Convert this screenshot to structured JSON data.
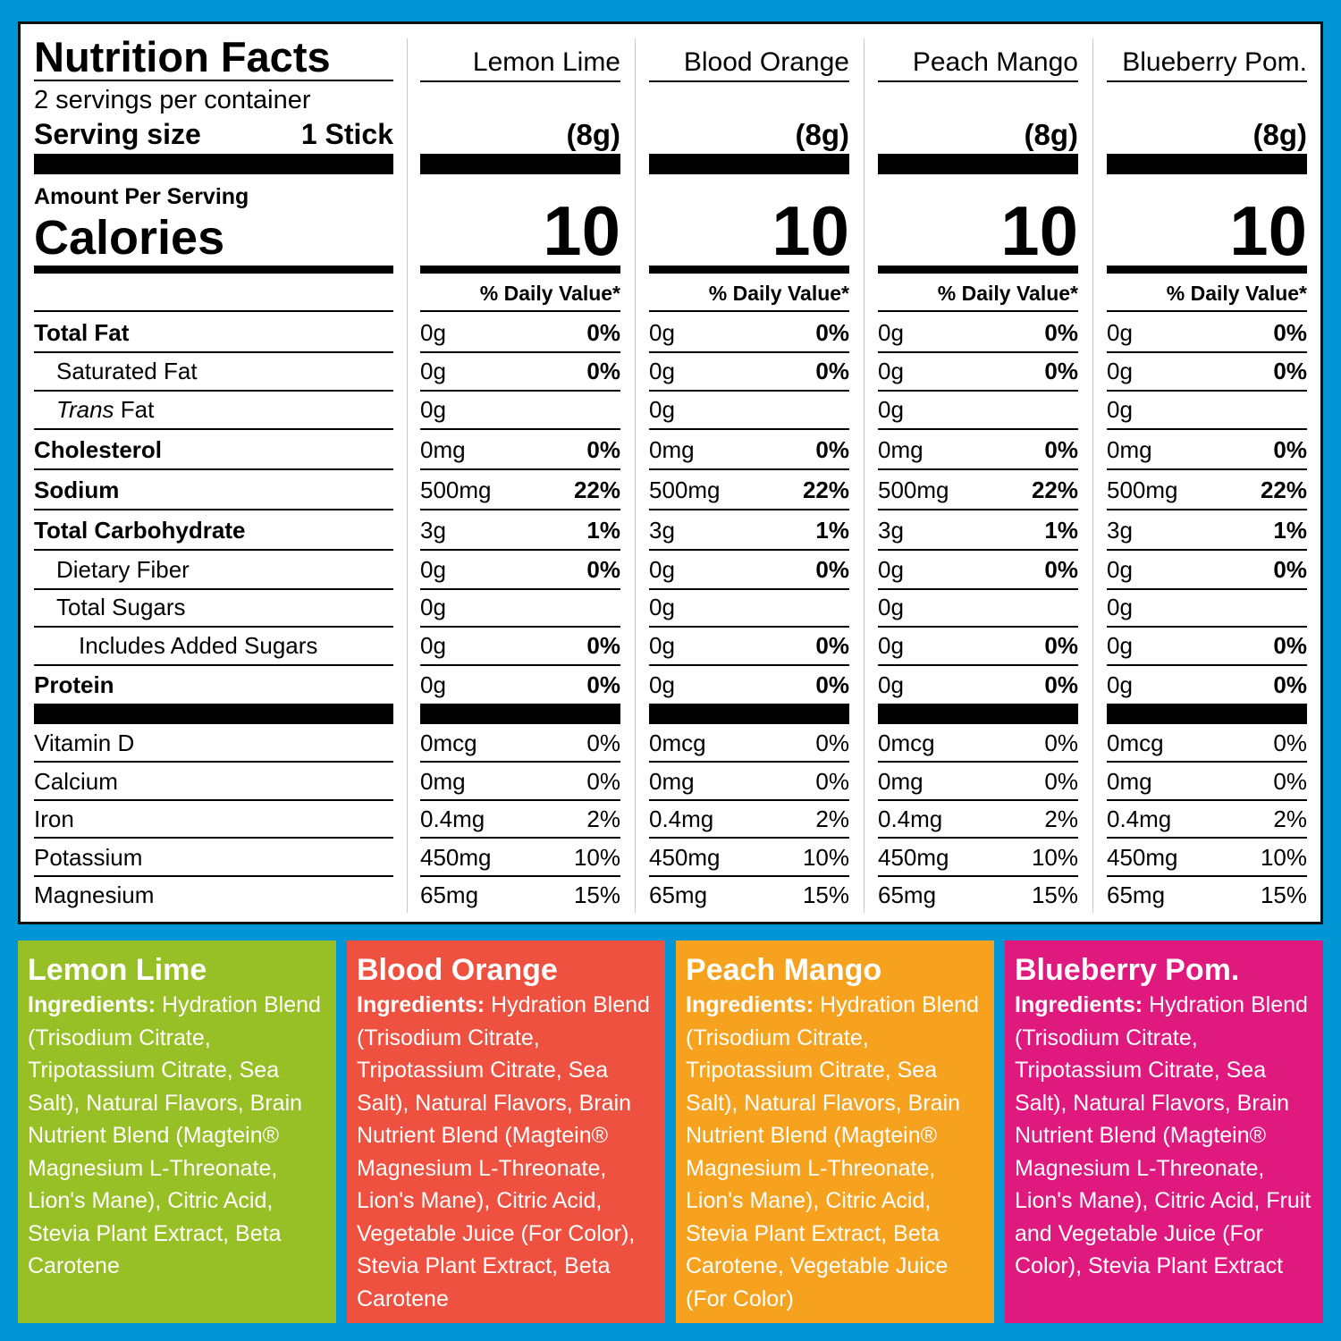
{
  "header": {
    "title": "Nutrition Facts",
    "servings": "2 servings per container",
    "serving_size_label": "Serving size",
    "serving_size_value": "1 Stick",
    "amount_per_serving": "Amount Per Serving",
    "calories_label": "Calories",
    "daily_value_label": "% Daily Value*"
  },
  "flavors": [
    {
      "name": "Lemon Lime",
      "serving_weight": "(8g)",
      "calories": "10"
    },
    {
      "name": "Blood Orange",
      "serving_weight": "(8g)",
      "calories": "10"
    },
    {
      "name": "Peach Mango",
      "serving_weight": "(8g)",
      "calories": "10"
    },
    {
      "name": "Blueberry Pom.",
      "serving_weight": "(8g)",
      "calories": "10"
    }
  ],
  "nutrients": [
    {
      "label": "Total Fat",
      "bold": true,
      "indent": 0,
      "amount": "0g",
      "dv": "0%"
    },
    {
      "label": "Saturated Fat",
      "bold": false,
      "indent": 1,
      "amount": "0g",
      "dv": "0%"
    },
    {
      "label": "Trans",
      "label_suffix": " Fat",
      "italic": true,
      "bold": false,
      "indent": 1,
      "amount": "0g",
      "dv": ""
    },
    {
      "label": "Cholesterol",
      "bold": true,
      "indent": 0,
      "amount": "0mg",
      "dv": "0%"
    },
    {
      "label": "Sodium",
      "bold": true,
      "indent": 0,
      "amount": "500mg",
      "dv": "22%"
    },
    {
      "label": "Total Carbohydrate",
      "bold": true,
      "indent": 0,
      "amount": "3g",
      "dv": "1%"
    },
    {
      "label": "Dietary Fiber",
      "bold": false,
      "indent": 1,
      "amount": "0g",
      "dv": "0%"
    },
    {
      "label": "Total Sugars",
      "bold": false,
      "indent": 1,
      "amount": "0g",
      "dv": ""
    },
    {
      "label": "Includes Added Sugars",
      "bold": false,
      "indent": 2,
      "amount": "0g",
      "dv": "0%"
    },
    {
      "label": "Protein",
      "bold": true,
      "indent": 0,
      "amount": "0g",
      "dv": "0%"
    }
  ],
  "vitamins": [
    {
      "label": "Vitamin D",
      "amount": "0mcg",
      "dv": "0%"
    },
    {
      "label": "Calcium",
      "amount": "0mg",
      "dv": "0%"
    },
    {
      "label": "Iron",
      "amount": "0.4mg",
      "dv": "2%"
    },
    {
      "label": "Potassium",
      "amount": "450mg",
      "dv": "10%"
    },
    {
      "label": "Magnesium",
      "amount": "65mg",
      "dv": "15%"
    }
  ],
  "ingredients": [
    {
      "flavor": "Lemon Lime",
      "color": "#97bf26",
      "prefix": "Ingredients:",
      "text": " Hydration Blend (Trisodium Citrate, Tripotassium Citrate, Sea Salt), Natural Flavors, Brain Nutrient Blend (Magtein® Magnesium L-Threonate, Lion's Mane), Citric Acid, Stevia Plant Extract, Beta Carotene"
    },
    {
      "flavor": "Blood Orange",
      "color": "#ee5140",
      "prefix": "Ingredients:",
      "text": " Hydration Blend (Trisodium Citrate, Tripotassium Citrate, Sea Salt), Natural Flavors, Brain Nutrient Blend (Magtein® Magnesium L-Threonate, Lion's Mane), Citric Acid, Vegetable Juice (For Color), Stevia Plant Extract, Beta Carotene"
    },
    {
      "flavor": "Peach Mango",
      "color": "#f6a21e",
      "prefix": "Ingredients:",
      "text": " Hydration Blend (Trisodium Citrate, Tripotassium Citrate, Sea Salt), Natural Flavors, Brain Nutrient Blend (Magtein® Magnesium L-Threonate, Lion's Mane), Citric Acid, Stevia Plant Extract, Beta Carotene, Vegetable Juice (For Color)"
    },
    {
      "flavor": "Blueberry Pom.",
      "color": "#e0197f",
      "prefix": "Ingredients:",
      "text": " Hydration Blend (Trisodium Citrate, Tripotassium Citrate, Sea Salt), Natural Flavors, Brain Nutrient Blend (Magtein® Magnesium L-Threonate, Lion's Mane), Citric Acid, Fruit and Vegetable Juice (For Color), Stevia Plant Extract"
    }
  ],
  "colors": {
    "background": "#0096d6",
    "label_bg": "#ffffff",
    "text": "#000000"
  }
}
